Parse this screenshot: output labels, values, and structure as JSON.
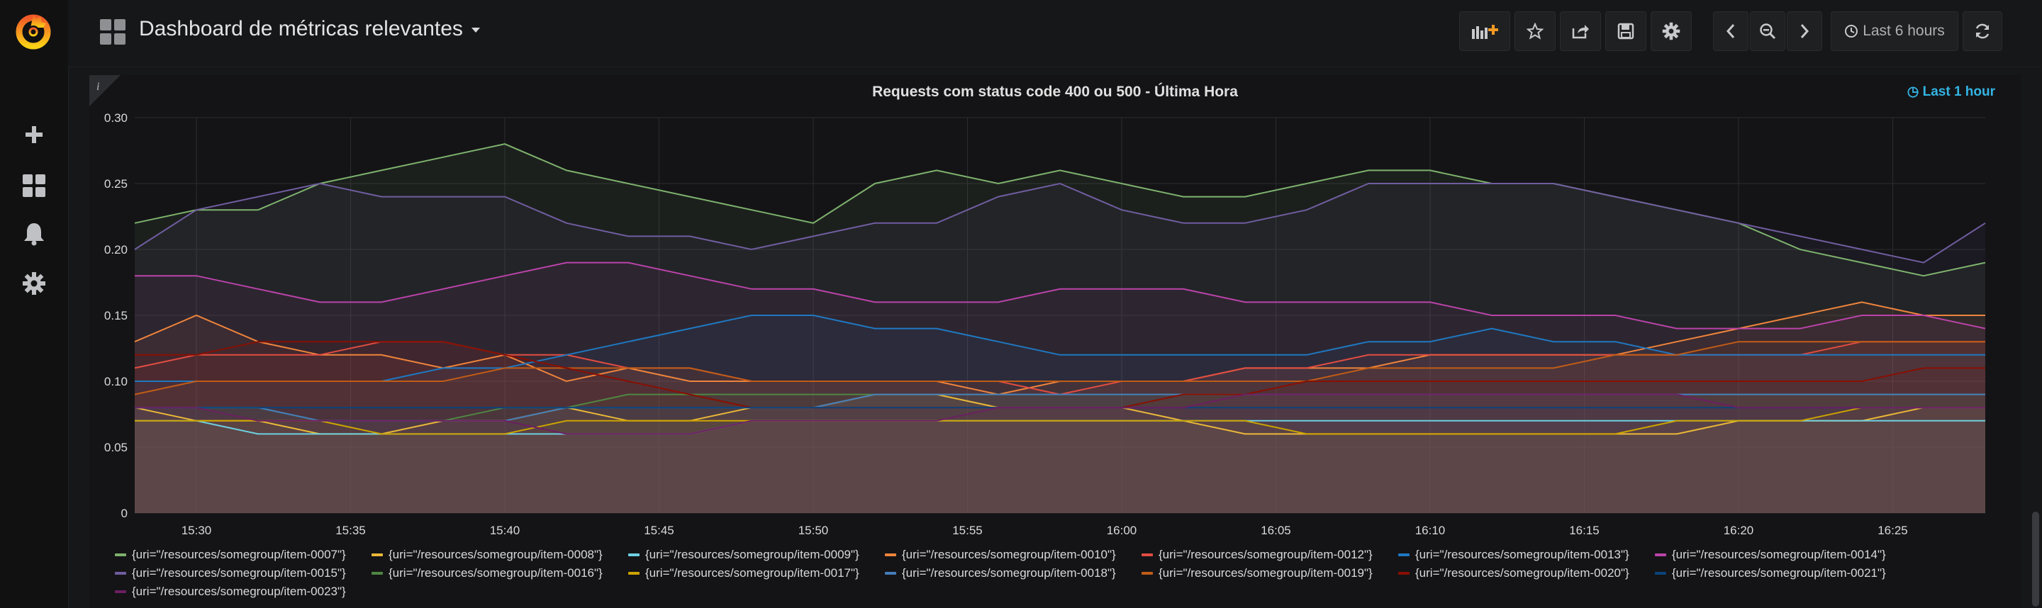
{
  "topbar": {
    "title": "Dashboard de métricas relevantes",
    "time_range_label": "Last 6 hours"
  },
  "sidebar": {
    "items": [
      {
        "icon": "plus-icon"
      },
      {
        "icon": "dashboards-icon"
      },
      {
        "icon": "bell-icon"
      },
      {
        "icon": "gear-icon"
      }
    ]
  },
  "panel": {
    "title": "Requests com status code 400 ou 500 - Última Hora",
    "time_override": "Last 1 hour"
  },
  "colors": {
    "accent": "#33b5e5",
    "background": "#161719",
    "panel": "#141416"
  },
  "chart_data": {
    "type": "area",
    "title": "Requests com status code 400 ou 500 - Última Hora",
    "xlabel": "",
    "ylabel": "",
    "ylim": [
      0,
      0.3
    ],
    "yticks": [
      "0",
      "0.05",
      "0.10",
      "0.15",
      "0.20",
      "0.25",
      "0.30"
    ],
    "xticks": [
      "15:30",
      "15:35",
      "15:40",
      "15:45",
      "15:50",
      "15:55",
      "16:00",
      "16:05",
      "16:10",
      "16:15",
      "16:20",
      "16:25"
    ],
    "grid": true,
    "legend_position": "bottom",
    "x": [
      "15:28",
      "15:30",
      "15:32",
      "15:34",
      "15:36",
      "15:38",
      "15:40",
      "15:42",
      "15:44",
      "15:46",
      "15:48",
      "15:50",
      "15:52",
      "15:54",
      "15:56",
      "15:58",
      "16:00",
      "16:02",
      "16:04",
      "16:06",
      "16:08",
      "16:10",
      "16:12",
      "16:14",
      "16:16",
      "16:18",
      "16:20",
      "16:22",
      "16:24",
      "16:26",
      "16:28"
    ],
    "series": [
      {
        "name": "{uri=\"/resources/somegroup/item-0007\"}",
        "color": "#7eb26d",
        "values": [
          0.22,
          0.23,
          0.23,
          0.25,
          0.26,
          0.27,
          0.28,
          0.26,
          0.25,
          0.24,
          0.23,
          0.22,
          0.25,
          0.26,
          0.25,
          0.26,
          0.25,
          0.24,
          0.24,
          0.25,
          0.26,
          0.26,
          0.25,
          0.25,
          0.24,
          0.23,
          0.22,
          0.2,
          0.19,
          0.18,
          0.19
        ]
      },
      {
        "name": "{uri=\"/resources/somegroup/item-0008\"}",
        "color": "#eab839",
        "values": [
          0.08,
          0.07,
          0.07,
          0.06,
          0.06,
          0.07,
          0.07,
          0.08,
          0.07,
          0.07,
          0.08,
          0.08,
          0.09,
          0.09,
          0.08,
          0.08,
          0.08,
          0.07,
          0.06,
          0.06,
          0.06,
          0.06,
          0.06,
          0.06,
          0.06,
          0.06,
          0.07,
          0.07,
          0.07,
          0.08,
          0.08
        ]
      },
      {
        "name": "{uri=\"/resources/somegroup/item-0009\"}",
        "color": "#6ed0e0",
        "values": [
          0.07,
          0.07,
          0.06,
          0.06,
          0.06,
          0.06,
          0.06,
          0.06,
          0.06,
          0.06,
          0.07,
          0.07,
          0.07,
          0.07,
          0.07,
          0.07,
          0.07,
          0.07,
          0.07,
          0.07,
          0.07,
          0.07,
          0.07,
          0.07,
          0.07,
          0.07,
          0.07,
          0.07,
          0.07,
          0.07,
          0.07
        ]
      },
      {
        "name": "{uri=\"/resources/somegroup/item-0010\"}",
        "color": "#ef843c",
        "values": [
          0.13,
          0.15,
          0.13,
          0.12,
          0.12,
          0.11,
          0.12,
          0.1,
          0.11,
          0.1,
          0.1,
          0.1,
          0.1,
          0.1,
          0.09,
          0.1,
          0.1,
          0.1,
          0.11,
          0.11,
          0.11,
          0.12,
          0.12,
          0.12,
          0.12,
          0.13,
          0.14,
          0.15,
          0.16,
          0.15,
          0.15
        ]
      },
      {
        "name": "{uri=\"/resources/somegroup/item-0012\"}",
        "color": "#e24d42",
        "values": [
          0.11,
          0.12,
          0.12,
          0.12,
          0.13,
          0.13,
          0.12,
          0.12,
          0.11,
          0.11,
          0.1,
          0.1,
          0.1,
          0.1,
          0.1,
          0.09,
          0.1,
          0.1,
          0.11,
          0.11,
          0.12,
          0.12,
          0.12,
          0.12,
          0.12,
          0.12,
          0.12,
          0.12,
          0.13,
          0.13,
          0.13
        ]
      },
      {
        "name": "{uri=\"/resources/somegroup/item-0013\"}",
        "color": "#1f78c1",
        "values": [
          0.1,
          0.1,
          0.1,
          0.1,
          0.1,
          0.11,
          0.11,
          0.12,
          0.13,
          0.14,
          0.15,
          0.15,
          0.14,
          0.14,
          0.13,
          0.12,
          0.12,
          0.12,
          0.12,
          0.12,
          0.13,
          0.13,
          0.14,
          0.13,
          0.13,
          0.12,
          0.12,
          0.12,
          0.12,
          0.12,
          0.12
        ]
      },
      {
        "name": "{uri=\"/resources/somegroup/item-0014\"}",
        "color": "#ba43a9",
        "values": [
          0.18,
          0.18,
          0.17,
          0.16,
          0.16,
          0.17,
          0.18,
          0.19,
          0.19,
          0.18,
          0.17,
          0.17,
          0.16,
          0.16,
          0.16,
          0.17,
          0.17,
          0.17,
          0.16,
          0.16,
          0.16,
          0.16,
          0.15,
          0.15,
          0.15,
          0.14,
          0.14,
          0.14,
          0.15,
          0.15,
          0.14
        ]
      },
      {
        "name": "{uri=\"/resources/somegroup/item-0015\"}",
        "color": "#705da0",
        "values": [
          0.2,
          0.23,
          0.24,
          0.25,
          0.24,
          0.24,
          0.24,
          0.22,
          0.21,
          0.21,
          0.2,
          0.21,
          0.22,
          0.22,
          0.24,
          0.25,
          0.23,
          0.22,
          0.22,
          0.23,
          0.25,
          0.25,
          0.25,
          0.25,
          0.24,
          0.23,
          0.22,
          0.21,
          0.2,
          0.19,
          0.22
        ]
      },
      {
        "name": "{uri=\"/resources/somegroup/item-0016\"}",
        "color": "#508642",
        "values": [
          0.08,
          0.08,
          0.08,
          0.07,
          0.07,
          0.07,
          0.08,
          0.08,
          0.09,
          0.09,
          0.09,
          0.09,
          0.09,
          0.09,
          0.09,
          0.09,
          0.09,
          0.09,
          0.09,
          0.09,
          0.09,
          0.09,
          0.09,
          0.09,
          0.09,
          0.09,
          0.09,
          0.09,
          0.09,
          0.09,
          0.09
        ]
      },
      {
        "name": "{uri=\"/resources/somegroup/item-0017\"}",
        "color": "#cca300",
        "values": [
          0.07,
          0.07,
          0.07,
          0.07,
          0.06,
          0.06,
          0.06,
          0.07,
          0.07,
          0.07,
          0.07,
          0.07,
          0.07,
          0.07,
          0.07,
          0.07,
          0.07,
          0.07,
          0.07,
          0.06,
          0.06,
          0.06,
          0.06,
          0.06,
          0.06,
          0.07,
          0.07,
          0.07,
          0.08,
          0.08,
          0.08
        ]
      },
      {
        "name": "{uri=\"/resources/somegroup/item-0018\"}",
        "color": "#447ebc",
        "values": [
          0.08,
          0.08,
          0.08,
          0.07,
          0.07,
          0.07,
          0.07,
          0.08,
          0.08,
          0.08,
          0.08,
          0.08,
          0.09,
          0.09,
          0.09,
          0.09,
          0.09,
          0.09,
          0.09,
          0.09,
          0.09,
          0.09,
          0.09,
          0.09,
          0.09,
          0.09,
          0.09,
          0.09,
          0.09,
          0.09,
          0.09
        ]
      },
      {
        "name": "{uri=\"/resources/somegroup/item-0019\"}",
        "color": "#c15c17",
        "values": [
          0.09,
          0.1,
          0.1,
          0.1,
          0.1,
          0.1,
          0.11,
          0.11,
          0.11,
          0.11,
          0.1,
          0.1,
          0.1,
          0.1,
          0.1,
          0.1,
          0.1,
          0.1,
          0.1,
          0.1,
          0.11,
          0.11,
          0.11,
          0.11,
          0.12,
          0.12,
          0.13,
          0.13,
          0.13,
          0.13,
          0.13
        ]
      },
      {
        "name": "{uri=\"/resources/somegroup/item-0020\"}",
        "color": "#890f02",
        "values": [
          0.12,
          0.12,
          0.13,
          0.13,
          0.13,
          0.13,
          0.12,
          0.11,
          0.1,
          0.09,
          0.08,
          0.08,
          0.08,
          0.08,
          0.08,
          0.08,
          0.08,
          0.09,
          0.09,
          0.1,
          0.1,
          0.1,
          0.1,
          0.1,
          0.1,
          0.1,
          0.1,
          0.1,
          0.1,
          0.11,
          0.11
        ]
      },
      {
        "name": "{uri=\"/resources/somegroup/item-0021\"}",
        "color": "#0a437c",
        "values": [
          0.08,
          0.08,
          0.08,
          0.08,
          0.08,
          0.08,
          0.08,
          0.08,
          0.08,
          0.08,
          0.08,
          0.08,
          0.08,
          0.08,
          0.08,
          0.08,
          0.08,
          0.08,
          0.08,
          0.08,
          0.08,
          0.08,
          0.08,
          0.08,
          0.08,
          0.08,
          0.08,
          0.08,
          0.08,
          0.08,
          0.08
        ]
      },
      {
        "name": "{uri=\"/resources/somegroup/item-0023\"}",
        "color": "#6d1f62",
        "values": [
          0.08,
          0.08,
          0.07,
          0.07,
          0.07,
          0.07,
          0.07,
          0.06,
          0.06,
          0.06,
          0.07,
          0.07,
          0.07,
          0.07,
          0.08,
          0.08,
          0.08,
          0.08,
          0.09,
          0.09,
          0.09,
          0.09,
          0.09,
          0.09,
          0.09,
          0.09,
          0.08,
          0.08,
          0.08,
          0.08,
          0.08
        ]
      }
    ]
  }
}
